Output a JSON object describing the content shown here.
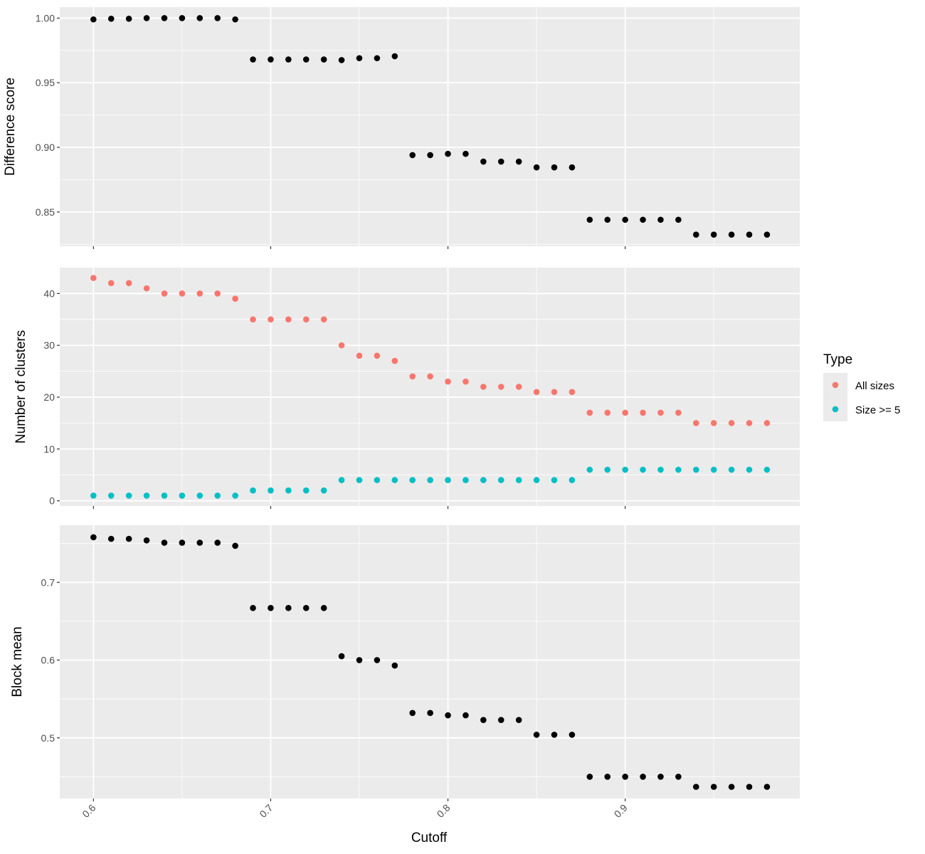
{
  "chart_data": {
    "type": "scatter",
    "x_label": "Cutoff",
    "x_ticks": [
      "0.6",
      "0.7",
      "0.8",
      "0.9"
    ],
    "x_tick_values": [
      0.6,
      0.7,
      0.8,
      0.9
    ],
    "x_range": [
      0.581,
      0.9985
    ],
    "x": [
      0.6,
      0.61,
      0.62,
      0.63,
      0.64,
      0.65,
      0.66,
      0.67,
      0.68,
      0.69,
      0.7,
      0.71,
      0.72,
      0.73,
      0.74,
      0.75,
      0.76,
      0.77,
      0.78,
      0.79,
      0.8,
      0.81,
      0.82,
      0.83,
      0.84,
      0.85,
      0.86,
      0.87,
      0.88,
      0.89,
      0.9,
      0.91,
      0.92,
      0.93,
      0.94,
      0.95,
      0.96,
      0.97,
      0.98
    ],
    "grid": true,
    "panels": [
      {
        "ylabel": "Difference score",
        "y_ticks": [
          "0.85",
          "0.90",
          "0.95",
          "1.00"
        ],
        "y_tick_values": [
          0.85,
          0.9,
          0.95,
          1.0
        ],
        "ylim": [
          0.8235,
          1.0085
        ],
        "series": [
          {
            "color": "#000000",
            "values": [
              0.999,
              0.9995,
              0.9995,
              1.0,
              1.0,
              1.0,
              1.0,
              1.0,
              0.999,
              0.968,
              0.968,
              0.968,
              0.968,
              0.968,
              0.9675,
              0.969,
              0.969,
              0.9705,
              0.894,
              0.894,
              0.895,
              0.895,
              0.889,
              0.889,
              0.889,
              0.8845,
              0.8845,
              0.8845,
              0.844,
              0.844,
              0.844,
              0.844,
              0.844,
              0.844,
              0.8325,
              0.8325,
              0.8325,
              0.8325,
              0.8325
            ]
          }
        ]
      },
      {
        "ylabel": "Number of clusters",
        "y_ticks": [
          "0",
          "10",
          "20",
          "30",
          "40"
        ],
        "y_tick_values": [
          0,
          10,
          20,
          30,
          40
        ],
        "ylim": [
          -1,
          45
        ],
        "series": [
          {
            "name": "All sizes",
            "color": "#f8766d",
            "values": [
              43,
              42,
              42,
              41,
              40,
              40,
              40,
              40,
              39,
              35,
              35,
              35,
              35,
              35,
              30,
              28,
              28,
              27,
              24,
              24,
              23,
              23,
              22,
              22,
              22,
              21,
              21,
              21,
              17,
              17,
              17,
              17,
              17,
              17,
              15,
              15,
              15,
              15,
              15
            ]
          },
          {
            "name": "Size >= 5",
            "color": "#00bfc4",
            "values": [
              1,
              1,
              1,
              1,
              1,
              1,
              1,
              1,
              1,
              2,
              2,
              2,
              2,
              2,
              4,
              4,
              4,
              4,
              4,
              4,
              4,
              4,
              4,
              4,
              4,
              4,
              4,
              4,
              6,
              6,
              6,
              6,
              6,
              6,
              6,
              6,
              6,
              6,
              6
            ]
          }
        ]
      },
      {
        "ylabel": "Block mean",
        "y_ticks": [
          "0.5",
          "0.6",
          "0.7"
        ],
        "y_tick_values": [
          0.5,
          0.6,
          0.7
        ],
        "ylim": [
          0.422,
          0.7735
        ],
        "series": [
          {
            "color": "#000000",
            "values": [
              0.758,
              0.756,
              0.756,
              0.754,
              0.751,
              0.751,
              0.751,
              0.751,
              0.747,
              0.667,
              0.667,
              0.667,
              0.667,
              0.667,
              0.605,
              0.6,
              0.6,
              0.593,
              0.532,
              0.532,
              0.529,
              0.529,
              0.523,
              0.523,
              0.523,
              0.504,
              0.504,
              0.504,
              0.45,
              0.45,
              0.45,
              0.45,
              0.45,
              0.45,
              0.437,
              0.437,
              0.437,
              0.437,
              0.437
            ]
          }
        ]
      }
    ],
    "legend": {
      "title": "Type",
      "position": "right",
      "entries": [
        {
          "label": "All sizes",
          "color": "#f8766d"
        },
        {
          "label": "Size >= 5",
          "color": "#00bfc4"
        }
      ]
    }
  }
}
